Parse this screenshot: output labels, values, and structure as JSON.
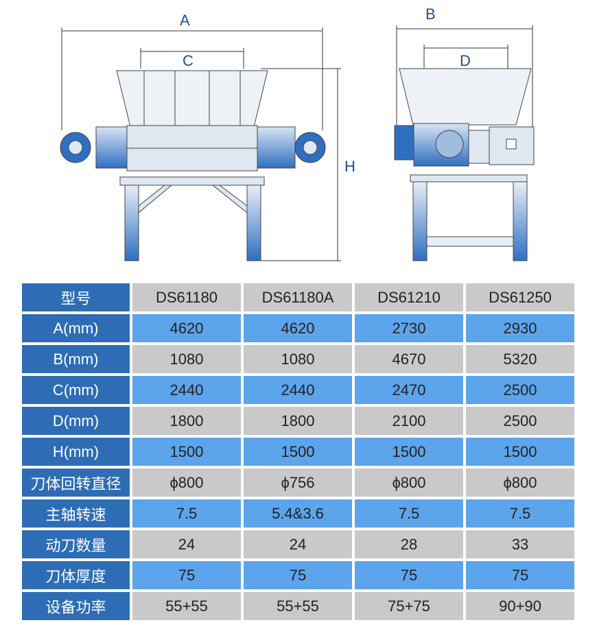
{
  "drawing": {
    "dimension_labels": {
      "A": "A",
      "B": "B",
      "C": "C",
      "D": "D",
      "H": "H"
    },
    "colors": {
      "motor_blue": "#2f6fc0",
      "frame": "#c8d6e6",
      "line": "#333333"
    }
  },
  "table": {
    "colors": {
      "label_bg": "#2e6db5",
      "gray_row": "#c9c9c9",
      "blue_row": "#5ca4ec"
    },
    "header": {
      "label": "型号",
      "models": [
        "DS61180",
        "DS61180A",
        "DS61210",
        "DS61250"
      ]
    },
    "rows": [
      {
        "label": "A(mm)",
        "values": [
          "4620",
          "4620",
          "2730",
          "2930"
        ]
      },
      {
        "label": "B(mm)",
        "values": [
          "1080",
          "1080",
          "4670",
          "5320"
        ]
      },
      {
        "label": "C(mm)",
        "values": [
          "2440",
          "2440",
          "2470",
          "2500"
        ]
      },
      {
        "label": "D(mm)",
        "values": [
          "1800",
          "1800",
          "2100",
          "2500"
        ]
      },
      {
        "label": "H(mm)",
        "values": [
          "1500",
          "1500",
          "1500",
          "1500"
        ]
      },
      {
        "label": "刀体回转直径",
        "values": [
          "ϕ800",
          "ϕ756",
          "ϕ800",
          "ϕ800"
        ]
      },
      {
        "label": "主轴转速",
        "values": [
          "7.5",
          "5.4&3.6",
          "7.5",
          "7.5"
        ]
      },
      {
        "label": "动刀数量",
        "values": [
          "24",
          "24",
          "28",
          "33"
        ]
      },
      {
        "label": "刀体厚度",
        "values": [
          "75",
          "75",
          "75",
          "75"
        ]
      },
      {
        "label": "设备功率",
        "values": [
          "55+55",
          "55+55",
          "75+75",
          "90+90"
        ]
      }
    ]
  }
}
